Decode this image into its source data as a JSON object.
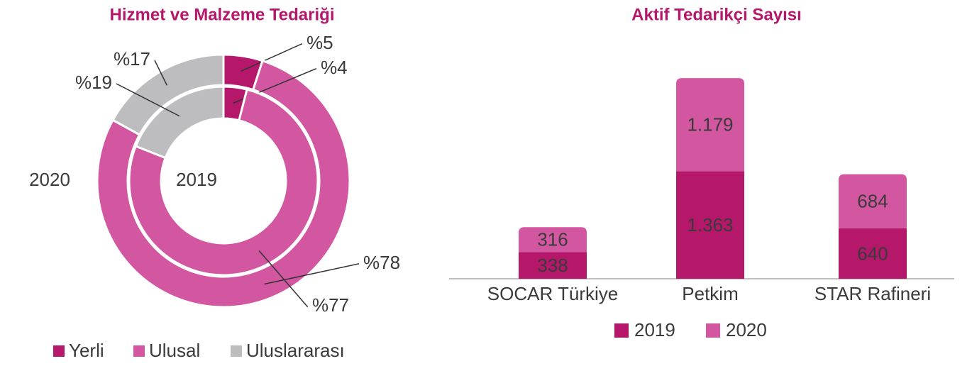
{
  "chart_data": [
    {
      "type": "pie",
      "title": "Hizmet ve Malzeme Tedariği",
      "categories": [
        "Yerli",
        "Ulusal",
        "Uluslararası"
      ],
      "colors": [
        "#b5176b",
        "#d357a0",
        "#bdbdbf"
      ],
      "series": [
        {
          "name": "2020",
          "values": [
            5,
            78,
            17
          ],
          "value_labels": [
            "%5",
            "%78",
            "%17"
          ]
        },
        {
          "name": "2019",
          "values": [
            4,
            77,
            19
          ],
          "value_labels": [
            "%4",
            "%77",
            "%19"
          ]
        }
      ]
    },
    {
      "type": "bar",
      "stacked": true,
      "title": "Aktif Tedarikçi Sayısı",
      "categories": [
        "SOCAR Türkiye",
        "Petkim",
        "STAR Rafineri"
      ],
      "series": [
        {
          "name": "2019",
          "color": "#b5176b",
          "values": [
            338,
            1363,
            640
          ],
          "value_labels": [
            "338",
            "1.363",
            "640"
          ]
        },
        {
          "name": "2020",
          "color": "#d357a0",
          "values": [
            316,
            1179,
            684
          ],
          "value_labels": [
            "316",
            "1.179",
            "684"
          ]
        }
      ]
    }
  ]
}
